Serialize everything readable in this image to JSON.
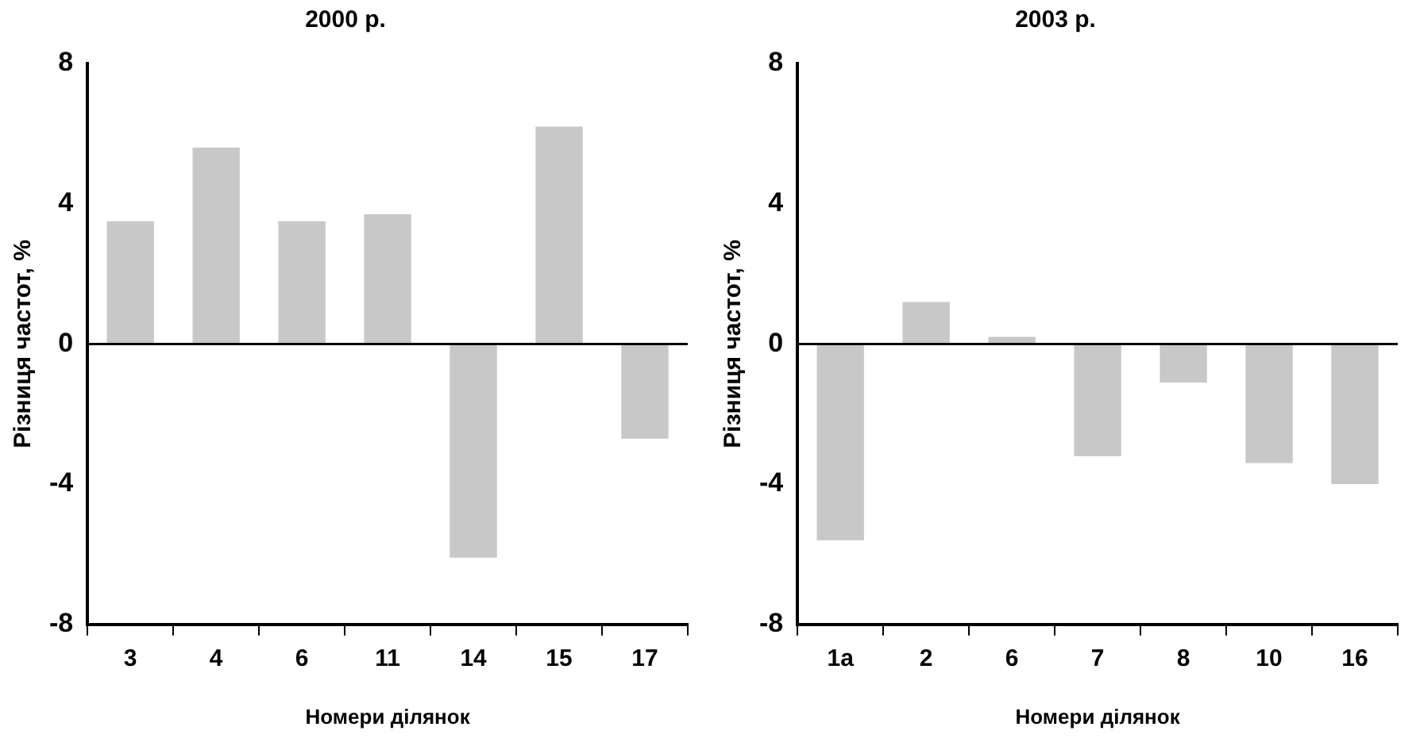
{
  "chart_data": [
    {
      "type": "bar",
      "title": "2000 р.",
      "xlabel": "Номери ділянок",
      "ylabel": "Різниця частот, %",
      "categories": [
        "3",
        "4",
        "6",
        "11",
        "14",
        "15",
        "17"
      ],
      "values": [
        3.5,
        5.6,
        3.5,
        3.7,
        -6.1,
        6.2,
        -2.7
      ],
      "color": "#c8c8c8",
      "ref_lines": [
        {
          "axis": "y",
          "value": 0,
          "color": "#000000"
        }
      ],
      "ylim": [
        -8,
        8
      ],
      "yticks": [
        -8,
        -4,
        0,
        4,
        8
      ],
      "grid": false,
      "legend": false
    },
    {
      "type": "bar",
      "title": "2003 р.",
      "xlabel": "Номери ділянок",
      "ylabel": "Різниця частот, %",
      "categories": [
        "1a",
        "2",
        "6",
        "7",
        "8",
        "10",
        "16"
      ],
      "values": [
        -5.6,
        1.2,
        0.2,
        -3.2,
        -1.1,
        -3.4,
        -4.0
      ],
      "color": "#c8c8c8",
      "ref_lines": [
        {
          "axis": "y",
          "value": 0,
          "color": "#000000"
        }
      ],
      "ylim": [
        -8,
        8
      ],
      "yticks": [
        -8,
        -4,
        0,
        4,
        8
      ],
      "grid": false,
      "legend": false
    }
  ]
}
